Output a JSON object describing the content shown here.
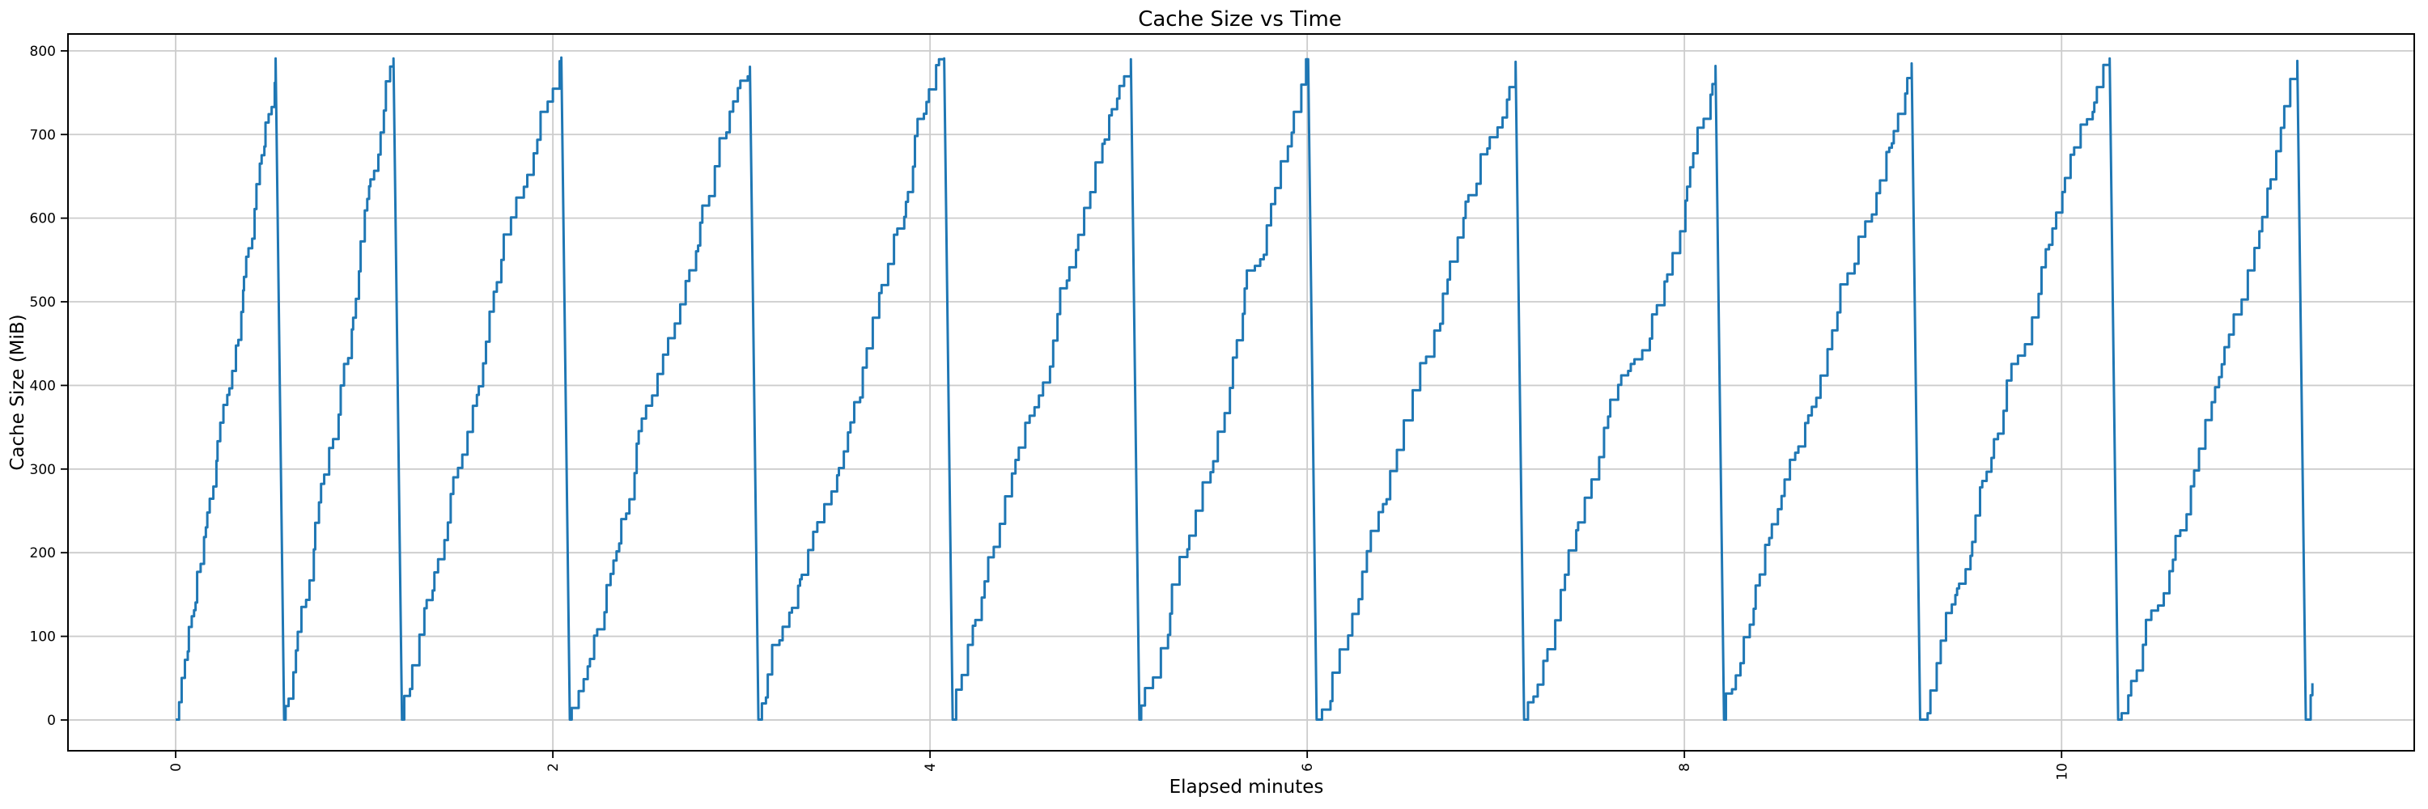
{
  "chart_data": {
    "type": "line",
    "title": "Cache Size vs Time",
    "xlabel": "Elapsed minutes",
    "ylabel": "Cache Size (MiB)",
    "grid": true,
    "legend": "none",
    "line_color": "#1f77b4",
    "grid_color": "#cccccc",
    "spine_color": "#000000",
    "background_color": "#ffffff",
    "xlim": [
      -0.571,
      11.87
    ],
    "ylim": [
      -36.8,
      820.2
    ],
    "x_ticks": [
      0,
      2,
      4,
      6,
      8,
      10
    ],
    "x_tick_labels": [
      "0",
      "2",
      "4",
      "6",
      "8",
      "10"
    ],
    "x_tick_label_rotation_deg": 90,
    "y_ticks": [
      0,
      100,
      200,
      300,
      400,
      500,
      600,
      700,
      800
    ],
    "y_tick_labels": [
      "0",
      "100",
      "200",
      "300",
      "400",
      "500",
      "600",
      "700",
      "800"
    ],
    "pattern": "sawtooth: cache fills from 0 in small irregular staircase steps up to ~780-792 MiB, then drops almost instantly back to ~0 and the cycle repeats; data ends mid-rise",
    "teeth": [
      {
        "start": 0.0,
        "end": 0.575,
        "peak": 791
      },
      {
        "start": 0.575,
        "end": 1.2,
        "peak": 791
      },
      {
        "start": 1.2,
        "end": 2.09,
        "peak": 792
      },
      {
        "start": 2.09,
        "end": 3.09,
        "peak": 781
      },
      {
        "start": 3.09,
        "end": 4.12,
        "peak": 791
      },
      {
        "start": 4.12,
        "end": 5.11,
        "peak": 790
      },
      {
        "start": 5.11,
        "end": 6.05,
        "peak": 790
      },
      {
        "start": 6.05,
        "end": 7.15,
        "peak": 787
      },
      {
        "start": 7.15,
        "end": 8.21,
        "peak": 782
      },
      {
        "start": 8.21,
        "end": 9.25,
        "peak": 785
      },
      {
        "start": 9.25,
        "end": 10.3,
        "peak": 791
      },
      {
        "start": 10.3,
        "end": 11.295,
        "peak": 788
      },
      {
        "start": 11.295,
        "end": 11.33,
        "peak": 44,
        "partial": true
      }
    ],
    "series_end": {
      "time": 11.33,
      "value": 44
    }
  }
}
